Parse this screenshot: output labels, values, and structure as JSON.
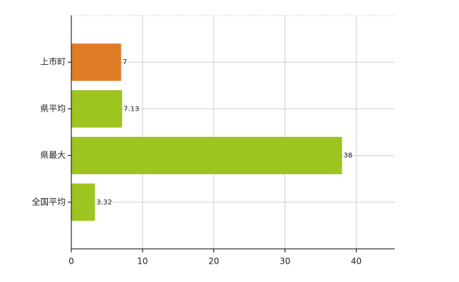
{
  "chart_data": {
    "type": "hbar",
    "categories": [
      "上市町",
      "県平均",
      "県最大",
      "全国平均"
    ],
    "values": [
      7,
      7.13,
      38,
      3.32
    ],
    "colors": [
      "#e07b28",
      "#9dc41f",
      "#9dc41f",
      "#9dc41f"
    ],
    "xlim": [
      0,
      45.4
    ],
    "xticks": [
      0,
      10,
      20,
      30,
      40
    ],
    "grid": true
  }
}
